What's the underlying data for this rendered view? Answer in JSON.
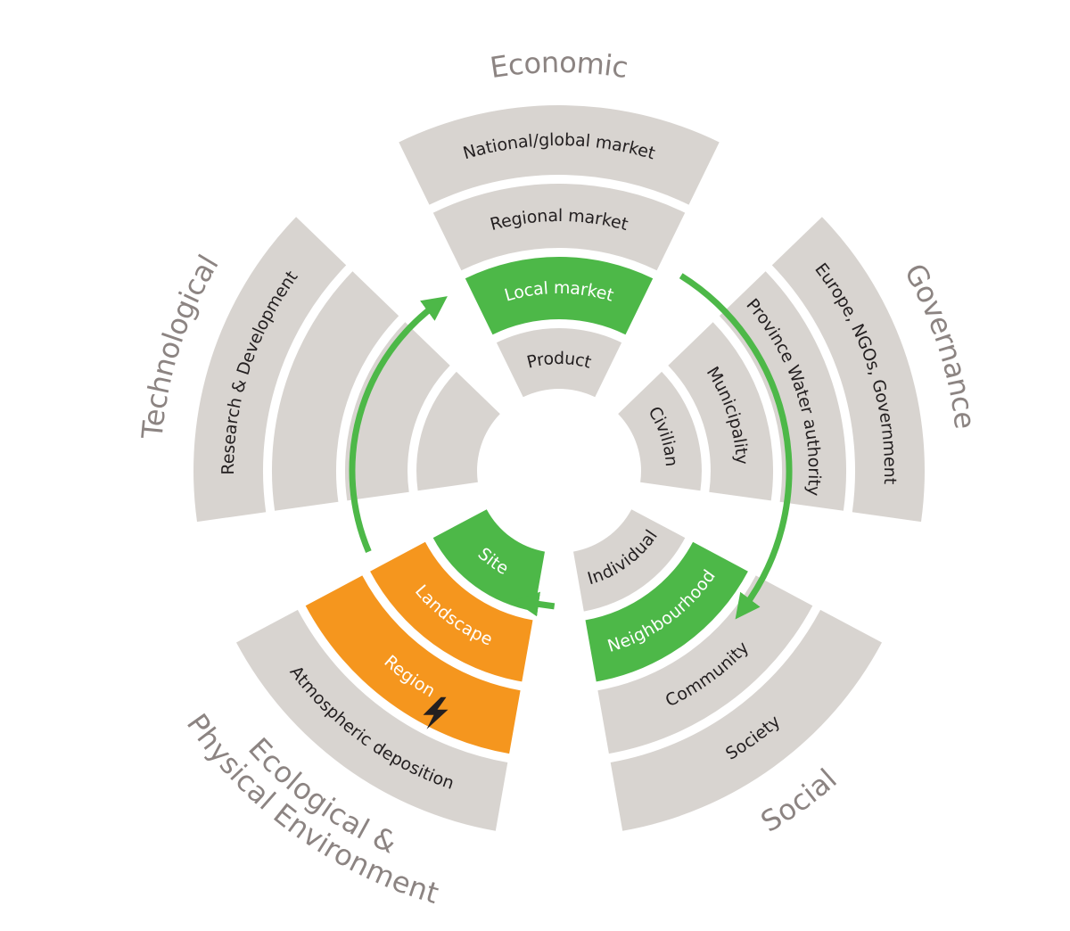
{
  "colors": {
    "segment": "#d8d4d0",
    "highlight_green": "#4db848",
    "highlight_orange": "#f5961e",
    "text_dark": "#231f20",
    "text_light": "#ffffff",
    "dimension_text": "#8c8482",
    "arrow": "#4db848",
    "lightning": "#231f20"
  },
  "dimensions": [
    {
      "name": "Economic",
      "rings": [
        {
          "label": "Product",
          "highlight": "none"
        },
        {
          "label": "Local market",
          "highlight": "green"
        },
        {
          "label": "Regional market",
          "highlight": "none"
        },
        {
          "label": "National/global market",
          "highlight": "none"
        }
      ]
    },
    {
      "name": "Governance",
      "rings": [
        {
          "label": "Civilian",
          "highlight": "none"
        },
        {
          "label": "Municipality",
          "highlight": "none"
        },
        {
          "label": "Province Water authority",
          "highlight": "none"
        },
        {
          "label": "Europe, NGOs, Government",
          "highlight": "none"
        }
      ]
    },
    {
      "name": "Social",
      "rings": [
        {
          "label": "Individual",
          "highlight": "none"
        },
        {
          "label": "Neighbourhood",
          "highlight": "green"
        },
        {
          "label": "Community",
          "highlight": "none"
        },
        {
          "label": "Society",
          "highlight": "none"
        }
      ]
    },
    {
      "name": "Ecological &\nPhysical Environment",
      "rings": [
        {
          "label": "Site",
          "highlight": "green"
        },
        {
          "label": "Landscape",
          "highlight": "orange"
        },
        {
          "label": "Region",
          "highlight": "orange"
        },
        {
          "label": "Atmospheric deposition",
          "highlight": "none"
        }
      ]
    },
    {
      "name": "Technological",
      "rings": [
        {
          "label": "",
          "highlight": "none"
        },
        {
          "label": "",
          "highlight": "none"
        },
        {
          "label": "",
          "highlight": "none"
        },
        {
          "label": "Research & Development",
          "highlight": "none"
        }
      ]
    }
  ],
  "arrows": [
    {
      "from": "Local market",
      "to": "Neighbourhood"
    },
    {
      "from": "Neighbourhood",
      "to": "Landscape"
    },
    {
      "from": "Site",
      "to": "Local market"
    }
  ],
  "markers": [
    {
      "icon": "lightning-icon",
      "near": "Region"
    }
  ]
}
